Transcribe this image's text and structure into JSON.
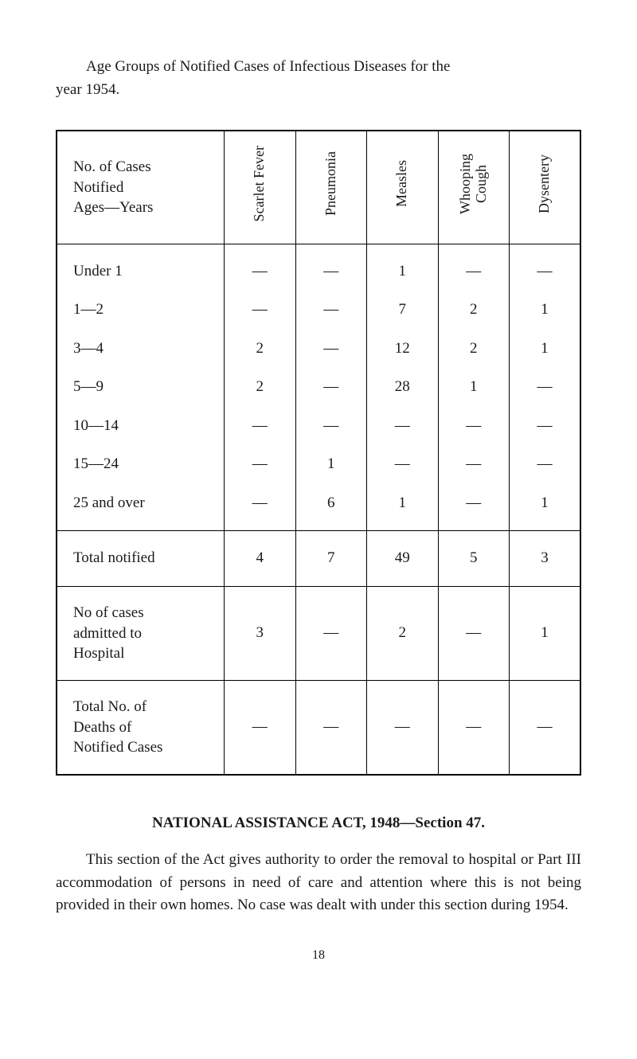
{
  "intro": {
    "line1": "Age Groups of Notified Cases of Infectious Diseases for the",
    "line2": "year 1954."
  },
  "table": {
    "header_rowlabel_lines": [
      "No. of Cases",
      "Notified",
      "Ages—Years"
    ],
    "columns": [
      {
        "label_lines": [
          "Scarlet Fever"
        ]
      },
      {
        "label_lines": [
          "Pneumonia"
        ]
      },
      {
        "label_lines": [
          "Measles"
        ]
      },
      {
        "label_lines": [
          "Whooping",
          "Cough"
        ]
      },
      {
        "label_lines": [
          "Dysentery"
        ]
      }
    ],
    "sections": [
      {
        "rows": [
          {
            "label_lines": [
              "Under 1"
            ],
            "cells": [
              "—",
              "—",
              "1",
              "—",
              "—"
            ]
          },
          {
            "label_lines": [
              "1—2"
            ],
            "cells": [
              "—",
              "—",
              "7",
              "2",
              "1"
            ]
          },
          {
            "label_lines": [
              "3—4"
            ],
            "cells": [
              "2",
              "—",
              "12",
              "2",
              "1"
            ]
          },
          {
            "label_lines": [
              "5—9"
            ],
            "cells": [
              "2",
              "—",
              "28",
              "1",
              "—"
            ]
          },
          {
            "label_lines": [
              "10—14"
            ],
            "cells": [
              "—",
              "—",
              "—",
              "—",
              "—"
            ]
          },
          {
            "label_lines": [
              "15—24"
            ],
            "cells": [
              "—",
              "1",
              "—",
              "—",
              "—"
            ]
          },
          {
            "label_lines": [
              "25 and over"
            ],
            "cells": [
              "—",
              "6",
              "1",
              "—",
              "1"
            ]
          }
        ]
      },
      {
        "rows": [
          {
            "label_lines": [
              "Total notified"
            ],
            "cells": [
              "4",
              "7",
              "49",
              "5",
              "3"
            ]
          }
        ]
      },
      {
        "rows": [
          {
            "label_lines": [
              "No of cases",
              "admitted to",
              "Hospital"
            ],
            "cells": [
              "3",
              "—",
              "2",
              "—",
              "1"
            ]
          }
        ]
      },
      {
        "rows": [
          {
            "label_lines": [
              "Total No. of",
              "Deaths of",
              "Notified Cases"
            ],
            "cells": [
              "—",
              "—",
              "—",
              "—",
              "—"
            ]
          }
        ]
      }
    ]
  },
  "section_heading": "NATIONAL ASSISTANCE ACT, 1948—Section 47.",
  "body_text": "This section of the Act gives authority to order the removal to hospital or Part III accommodation of persons in need of care and attention where this is not being provided in their own homes. No case was dealt with under this section during 1954.",
  "page_number": "18"
}
